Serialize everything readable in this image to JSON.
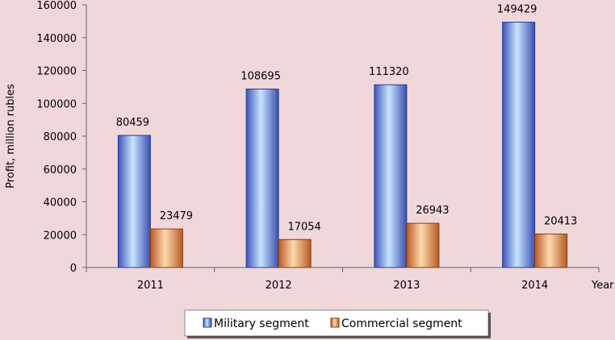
{
  "chart_data": {
    "type": "bar",
    "title": "",
    "xlabel": "Year",
    "ylabel": "Profit, million rubles",
    "categories": [
      "2011",
      "2012",
      "2013",
      "2014"
    ],
    "series": [
      {
        "name": "Military segment",
        "values": [
          80459,
          108695,
          111320,
          149429
        ],
        "color": "#4f6fd0"
      },
      {
        "name": "Commercial segment",
        "values": [
          23479,
          17054,
          26943,
          20413
        ],
        "color": "#e08a4a"
      }
    ],
    "ylim": [
      0,
      160000
    ],
    "yticks": [
      "0",
      "20000",
      "40000",
      "60000",
      "80000",
      "100000",
      "120000",
      "140000",
      "160000"
    ],
    "grid": false,
    "legend_position": "bottom"
  }
}
